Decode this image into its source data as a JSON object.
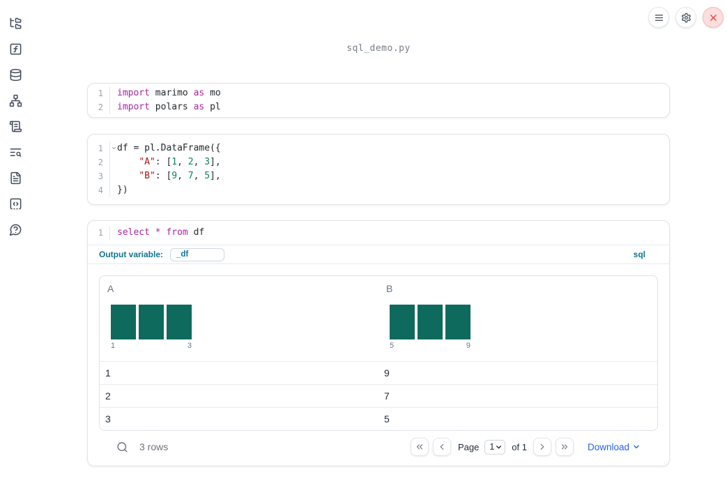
{
  "app": {
    "title": "sql_demo.py"
  },
  "topbar": {
    "buttons": [
      {
        "name": "notebook-menu",
        "icon": "menu"
      },
      {
        "name": "settings",
        "icon": "gear"
      },
      {
        "name": "shutdown",
        "icon": "close"
      }
    ]
  },
  "sidebar": {
    "items": [
      {
        "name": "file-explorer",
        "icon": "folder-tree"
      },
      {
        "name": "variables",
        "icon": "function-square"
      },
      {
        "name": "data-sources",
        "icon": "database"
      },
      {
        "name": "dependency-graph",
        "icon": "network"
      },
      {
        "name": "scratchpad",
        "icon": "scroll-text"
      },
      {
        "name": "logs",
        "icon": "text-search"
      },
      {
        "name": "documentation",
        "icon": "file-text"
      },
      {
        "name": "snippets",
        "icon": "square-code"
      },
      {
        "name": "ai-chat",
        "icon": "message-question"
      }
    ]
  },
  "cells": [
    {
      "name": "imports-cell",
      "lines": [
        {
          "num": "1",
          "tokens": [
            [
              "kw",
              "import"
            ],
            [
              "pl",
              " marimo "
            ],
            [
              "kw",
              "as"
            ],
            [
              "pl",
              " mo"
            ]
          ]
        },
        {
          "num": "2",
          "tokens": [
            [
              "kw",
              "import"
            ],
            [
              "pl",
              " polars "
            ],
            [
              "kw",
              "as"
            ],
            [
              "pl",
              " pl"
            ]
          ]
        }
      ]
    },
    {
      "name": "dataframe-cell",
      "lines": [
        {
          "num": "1",
          "fold": true,
          "tokens": [
            [
              "pl",
              "df = pl.DataFrame({"
            ]
          ]
        },
        {
          "num": "2",
          "tokens": [
            [
              "pl",
              "    "
            ],
            [
              "str",
              "\"A\""
            ],
            [
              "pl",
              ": ["
            ],
            [
              "num",
              "1"
            ],
            [
              "pl",
              ", "
            ],
            [
              "num",
              "2"
            ],
            [
              "pl",
              ", "
            ],
            [
              "num",
              "3"
            ],
            [
              "pl",
              "],"
            ]
          ]
        },
        {
          "num": "3",
          "tokens": [
            [
              "pl",
              "    "
            ],
            [
              "str",
              "\"B\""
            ],
            [
              "pl",
              ": ["
            ],
            [
              "num",
              "9"
            ],
            [
              "pl",
              ", "
            ],
            [
              "num",
              "7"
            ],
            [
              "pl",
              ", "
            ],
            [
              "num",
              "5"
            ],
            [
              "pl",
              "],"
            ]
          ]
        },
        {
          "num": "4",
          "tokens": [
            [
              "pl",
              "})"
            ]
          ]
        }
      ]
    },
    {
      "name": "sql-editor",
      "lines": [
        {
          "num": "1",
          "tokens": [
            [
              "kw",
              "select"
            ],
            [
              "pl",
              " "
            ],
            [
              "kw",
              "*"
            ],
            [
              "pl",
              " "
            ],
            [
              "kw",
              "from"
            ],
            [
              "pl",
              " df"
            ]
          ]
        }
      ]
    }
  ],
  "sql_cell": {
    "output_variable_label": "Output variable:",
    "output_variable_value": "_df",
    "language_badge": "sql"
  },
  "table": {
    "columns": [
      {
        "name": "A",
        "histogram": {
          "bar_heights": [
            1,
            1,
            1
          ],
          "min_label": "1",
          "max_label": "3"
        }
      },
      {
        "name": "B",
        "histogram": {
          "bar_heights": [
            1,
            1,
            1
          ],
          "min_label": "5",
          "max_label": "9"
        }
      }
    ],
    "rows": [
      [
        "1",
        "9"
      ],
      [
        "2",
        "7"
      ],
      [
        "3",
        "5"
      ]
    ],
    "footer": {
      "row_count": "3 rows",
      "page_label": "Page",
      "page_value": "1",
      "page_total_label": "of 1",
      "download_label": "Download"
    }
  },
  "colors": {
    "histogram_bar": "#0E6A5C",
    "sql_accent": "#0E7490",
    "link_blue": "#2563EB",
    "keyword": "#A626A4",
    "string": "#A31515",
    "number": "#098658"
  }
}
